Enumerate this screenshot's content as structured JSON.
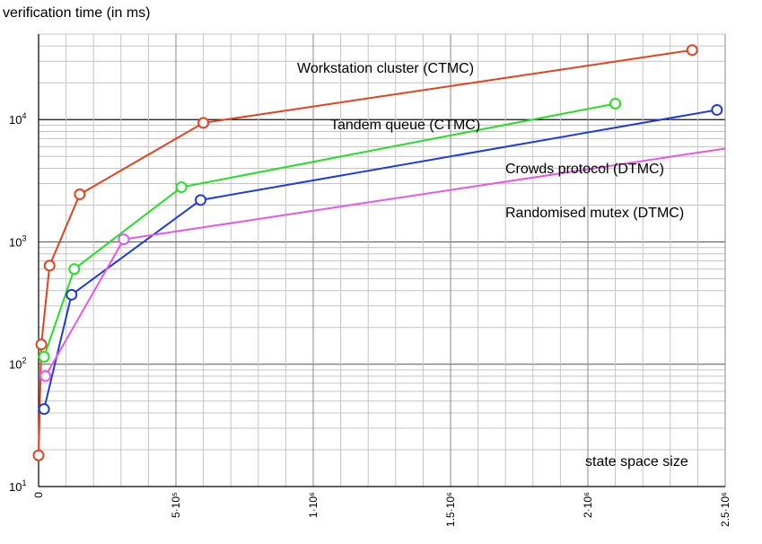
{
  "chart_data": {
    "type": "line",
    "ylabel": "verification time (in ms)",
    "xlabel": "state space size",
    "yscale": "log",
    "ylim": [
      10,
      50000
    ],
    "xlim": [
      0,
      2500000
    ],
    "grid": true,
    "x_ticks": [
      {
        "value": 0,
        "label": "0"
      },
      {
        "value": 500000,
        "label": "5·10⁵"
      },
      {
        "value": 1000000,
        "label": "1·10⁶"
      },
      {
        "value": 1500000,
        "label": "1.5·10⁶"
      },
      {
        "value": 2000000,
        "label": "2·10⁶"
      },
      {
        "value": 2500000,
        "label": "2.5·10⁶"
      }
    ],
    "y_ticks": [
      {
        "value": 10,
        "base": "10",
        "exp": "1"
      },
      {
        "value": 100,
        "base": "10",
        "exp": "2"
      },
      {
        "value": 1000,
        "base": "10",
        "exp": "3"
      },
      {
        "value": 10000,
        "base": "10",
        "exp": "4"
      }
    ],
    "series": [
      {
        "name": "Workstation cluster (CTMC)",
        "color": "#e8401c",
        "x": [
          0,
          10000,
          40000,
          150000,
          600000,
          2380000
        ],
        "y": [
          18,
          145,
          640,
          2450,
          9400,
          37000
        ]
      },
      {
        "name": "Tandem queue (CTMC)",
        "color": "#22e022",
        "x": [
          20000,
          130000,
          520000,
          2100000
        ],
        "y": [
          115,
          600,
          2800,
          13500
        ]
      },
      {
        "name": "Crowds protocol (DTMC)",
        "color": "#1c3ce0",
        "x": [
          20000,
          120000,
          590000,
          2470000
        ],
        "y": [
          43,
          370,
          2200,
          12000
        ]
      },
      {
        "name": "Randomised mutex (DTMC)",
        "color": "#e855e8",
        "x": [
          25000,
          310000,
          2500000
        ],
        "y": [
          80,
          1050,
          5800
        ]
      }
    ]
  }
}
